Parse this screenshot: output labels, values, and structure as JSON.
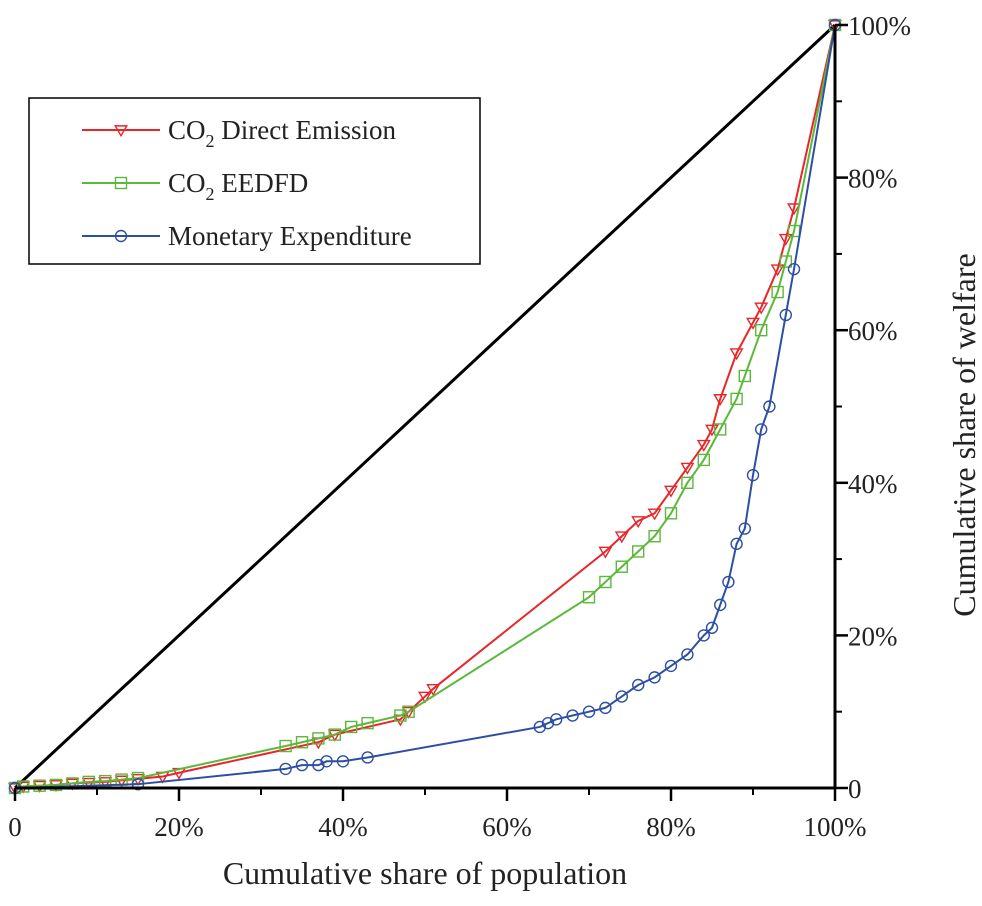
{
  "chart_data": {
    "type": "line",
    "title": "",
    "xlabel": "Cumulative share of population",
    "ylabel": "Cumulative share of welfare",
    "xlim": [
      0,
      1
    ],
    "ylim": [
      0,
      1
    ],
    "x_ticks": [
      {
        "value": 0,
        "label": "0"
      },
      {
        "value": 0.2,
        "label": "20%"
      },
      {
        "value": 0.4,
        "label": "40%"
      },
      {
        "value": 0.6,
        "label": "60%"
      },
      {
        "value": 0.8,
        "label": "80%"
      },
      {
        "value": 1.0,
        "label": "100%"
      }
    ],
    "y_ticks": [
      {
        "value": 0,
        "label": "0"
      },
      {
        "value": 0.2,
        "label": "20%"
      },
      {
        "value": 0.4,
        "label": "40%"
      },
      {
        "value": 0.6,
        "label": "60%"
      },
      {
        "value": 0.8,
        "label": "80%"
      },
      {
        "value": 1.0,
        "label": "100%"
      }
    ],
    "y_axis_position": "right",
    "grid": false,
    "legend_position": "top-left",
    "equality_line": {
      "x": [
        0,
        1
      ],
      "y": [
        0,
        1
      ],
      "color": "#000000"
    },
    "series": [
      {
        "name": "CO",
        "name_sub": "2",
        "name_rest": " Direct Emission",
        "color": "#e8262a",
        "marker": "triangle-down",
        "x": [
          0,
          0.01,
          0.03,
          0.05,
          0.07,
          0.09,
          0.11,
          0.13,
          0.15,
          0.18,
          0.2,
          0.37,
          0.39,
          0.47,
          0.48,
          0.5,
          0.51,
          0.72,
          0.74,
          0.76,
          0.78,
          0.8,
          0.82,
          0.84,
          0.85,
          0.86,
          0.88,
          0.9,
          0.91,
          0.93,
          0.94,
          0.95,
          1.0
        ],
        "y": [
          0,
          0.002,
          0.003,
          0.004,
          0.006,
          0.007,
          0.008,
          0.01,
          0.012,
          0.015,
          0.02,
          0.06,
          0.07,
          0.09,
          0.1,
          0.12,
          0.13,
          0.31,
          0.33,
          0.35,
          0.36,
          0.39,
          0.42,
          0.45,
          0.47,
          0.51,
          0.57,
          0.61,
          0.63,
          0.68,
          0.72,
          0.76,
          1.0
        ]
      },
      {
        "name": "CO",
        "name_sub": "2",
        "name_rest": " EEDFD",
        "color": "#5cb83a",
        "marker": "square",
        "x": [
          0,
          0.01,
          0.03,
          0.05,
          0.07,
          0.09,
          0.11,
          0.13,
          0.15,
          0.33,
          0.35,
          0.37,
          0.39,
          0.41,
          0.43,
          0.47,
          0.48,
          0.7,
          0.72,
          0.74,
          0.76,
          0.78,
          0.8,
          0.82,
          0.84,
          0.86,
          0.88,
          0.89,
          0.91,
          0.93,
          0.94,
          0.95,
          1.0
        ],
        "y": [
          0,
          0.002,
          0.003,
          0.004,
          0.006,
          0.008,
          0.009,
          0.011,
          0.013,
          0.055,
          0.06,
          0.065,
          0.07,
          0.08,
          0.085,
          0.095,
          0.1,
          0.25,
          0.27,
          0.29,
          0.31,
          0.33,
          0.36,
          0.4,
          0.43,
          0.47,
          0.51,
          0.54,
          0.6,
          0.65,
          0.69,
          0.73,
          1.0
        ]
      },
      {
        "name": "Monetary Expenditure",
        "name_sub": "",
        "name_rest": "",
        "color": "#2d4fa3",
        "marker": "circle",
        "x": [
          0,
          0.15,
          0.33,
          0.35,
          0.37,
          0.38,
          0.4,
          0.43,
          0.64,
          0.65,
          0.66,
          0.68,
          0.7,
          0.72,
          0.74,
          0.76,
          0.78,
          0.8,
          0.82,
          0.84,
          0.85,
          0.86,
          0.87,
          0.88,
          0.89,
          0.9,
          0.91,
          0.92,
          0.94,
          0.95,
          1.0
        ],
        "y": [
          0,
          0.005,
          0.025,
          0.03,
          0.03,
          0.035,
          0.035,
          0.04,
          0.08,
          0.085,
          0.09,
          0.095,
          0.1,
          0.105,
          0.12,
          0.135,
          0.145,
          0.16,
          0.175,
          0.2,
          0.21,
          0.24,
          0.27,
          0.32,
          0.34,
          0.41,
          0.47,
          0.5,
          0.62,
          0.68,
          1.0
        ]
      }
    ]
  }
}
